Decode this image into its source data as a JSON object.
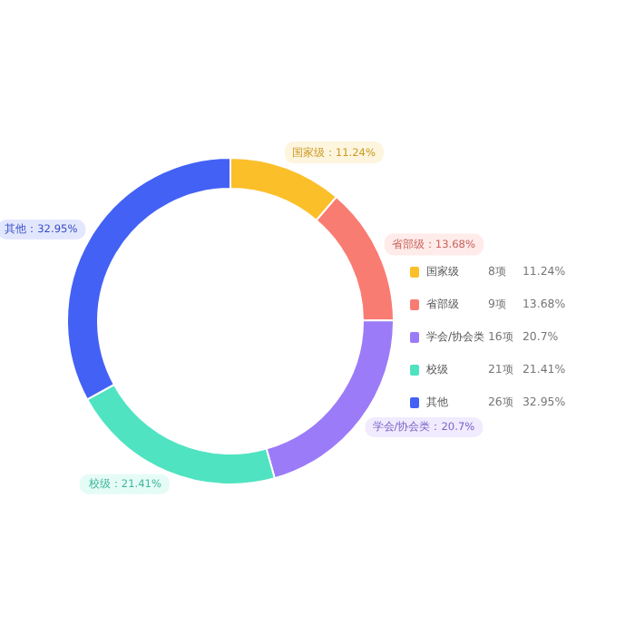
{
  "chart_data": {
    "type": "donut",
    "categories": [
      "国家级",
      "省部级",
      "学会/协会类",
      "校级",
      "其他"
    ],
    "values": [
      11.24,
      13.68,
      20.7,
      21.41,
      32.95
    ],
    "colors": [
      "#fbbf2a",
      "#f97c72",
      "#9b7bf7",
      "#4fe3c1",
      "#4361f5"
    ],
    "annotations": [
      "国家级：11.24%",
      "省部级：13.68%",
      "学会/协会类：20.7%",
      "校级：21.41%",
      "其他：32.95%",
      "8项",
      "9项",
      "16项",
      "21项",
      "26项",
      "11.24%",
      "13.68%",
      "20.7%",
      "21.41%",
      "32.95%"
    ],
    "legend": "right"
  }
}
